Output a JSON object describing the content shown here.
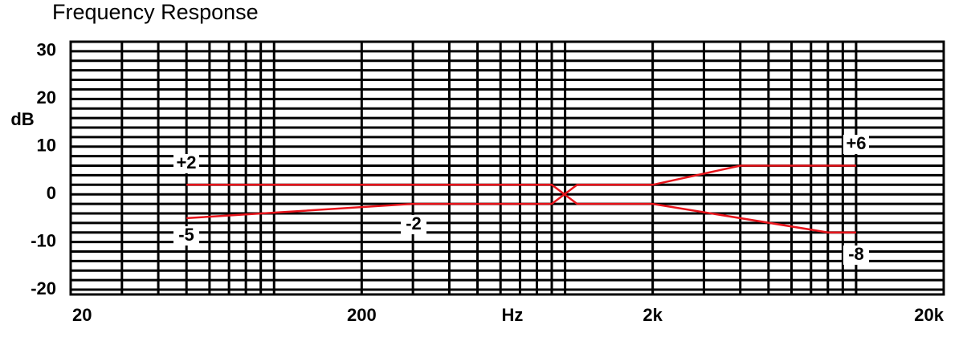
{
  "chart_data": {
    "type": "line",
    "title": "Frequency Response",
    "x_label": "Hz",
    "y_label": "dB",
    "x_log": true,
    "xlim": [
      20,
      20000
    ],
    "ylim": [
      -21,
      32
    ],
    "xticks": [
      {
        "value": 20,
        "label": "20"
      },
      {
        "value": 200,
        "label": "200"
      },
      {
        "value": 2000,
        "label": "2k"
      },
      {
        "value": 20000,
        "label": "20k"
      }
    ],
    "x_minor_ticks": [
      30,
      40,
      50,
      60,
      70,
      80,
      90,
      100,
      300,
      400,
      500,
      600,
      700,
      800,
      900,
      1000,
      3000,
      4000,
      5000,
      6000,
      7000,
      8000,
      9000,
      10000
    ],
    "yticks": [
      -20,
      -10,
      0,
      10,
      20,
      30
    ],
    "y_minor_ticks": [
      -18,
      -16,
      -14,
      -12,
      -8,
      -6,
      -4,
      -2,
      2,
      4,
      6,
      8,
      12,
      14,
      16,
      18,
      22,
      24,
      26,
      28
    ],
    "grid": true,
    "series": [
      {
        "color": "#e8141b",
        "x": [
          50,
          900,
          1100,
          2000,
          8000,
          10000
        ],
        "values": [
          2,
          2,
          -2,
          -2,
          -8,
          -8
        ]
      },
      {
        "color": "#e8141b",
        "x": [
          50,
          300,
          900,
          1100,
          2000,
          4000,
          10000
        ],
        "values": [
          -5,
          -2,
          -2,
          2,
          2,
          6,
          6
        ]
      }
    ],
    "annotations": [
      "+2",
      "-5",
      "-2",
      "+6",
      "-8"
    ]
  }
}
